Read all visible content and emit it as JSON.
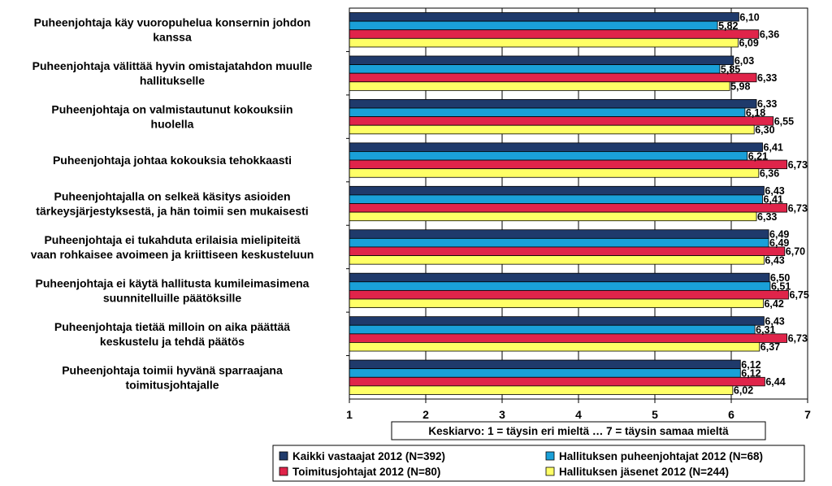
{
  "chart_data": {
    "type": "bar",
    "orientation": "horizontal",
    "categories": [
      [
        "Puheenjohtaja käy vuoropuhelua konsernin johdon",
        "kanssa"
      ],
      [
        "Puheenjohtaja välittää hyvin omistajatahdon muulle",
        "hallitukselle"
      ],
      [
        "Puheenjohtaja on valmistautunut kokouksiin",
        "huolella"
      ],
      [
        "Puheenjohtaja johtaa kokouksia tehokkaasti"
      ],
      [
        "Puheenjohtajalla on selkeä käsitys asioiden",
        "tärkeysjärjestyksestä, ja hän toimii sen mukaisesti"
      ],
      [
        "Puheenjohtaja ei tukahduta erilaisia mielipiteitä",
        "vaan rohkaisee avoimeen ja kriittiseen keskusteluun"
      ],
      [
        "Puheenjohtaja ei käytä hallitusta kumileimasimena",
        "suunnitelluille päätöksille"
      ],
      [
        "Puheenjohtaja tietää milloin on aika päättää",
        "keskustelu ja tehdä päätös"
      ],
      [
        "Puheenjohtaja toimii hyvänä sparraajana",
        "toimitusjohtajalle"
      ]
    ],
    "series": [
      {
        "name": "Kaikki vastaajat 2012 (N=392)",
        "color": "#1f3a6b",
        "values": [
          6.1,
          6.03,
          6.33,
          6.41,
          6.43,
          6.49,
          6.5,
          6.43,
          6.12
        ],
        "labels": [
          "6,10",
          "6,03",
          "6,33",
          "6,41",
          "6,43",
          "6,49",
          "6,50",
          "6,43",
          "6,12"
        ]
      },
      {
        "name": "Hallituksen puheenjohtajat 2012 (N=68)",
        "color": "#1aa0d8",
        "values": [
          5.82,
          5.85,
          6.18,
          6.21,
          6.41,
          6.49,
          6.51,
          6.31,
          6.12
        ],
        "labels": [
          "5,82",
          "5,85",
          "6,18",
          "6,21",
          "6,41",
          "6,49",
          "6,51",
          "6,31",
          "6,12"
        ]
      },
      {
        "name": "Toimitusjohtajat 2012 (N=80)",
        "color": "#e0244a",
        "values": [
          6.36,
          6.33,
          6.55,
          6.73,
          6.73,
          6.7,
          6.75,
          6.73,
          6.44
        ],
        "labels": [
          "6,36",
          "6,33",
          "6,55",
          "6,73",
          "6,73",
          "6,70",
          "6,75",
          "6,73",
          "6,44"
        ]
      },
      {
        "name": "Hallituksen jäsenet 2012 (N=244)",
        "color": "#ffff66",
        "values": [
          6.09,
          5.98,
          6.3,
          6.36,
          6.33,
          6.43,
          6.42,
          6.37,
          6.02
        ],
        "labels": [
          "6,09",
          "5,98",
          "6,30",
          "6,36",
          "6,33",
          "6,43",
          "6,42",
          "6,37",
          "6,02"
        ]
      }
    ],
    "xlim": [
      1,
      7
    ],
    "xticks": [
      1,
      2,
      3,
      4,
      5,
      6,
      7
    ],
    "xtick_labels": [
      "1",
      "2",
      "3",
      "4",
      "5",
      "6",
      "7"
    ],
    "xlabel": "Keskiarvo: 1 = täysin eri mieltä … 7 = täysin samaa mieltä",
    "grid": true,
    "legend_position": "bottom"
  }
}
